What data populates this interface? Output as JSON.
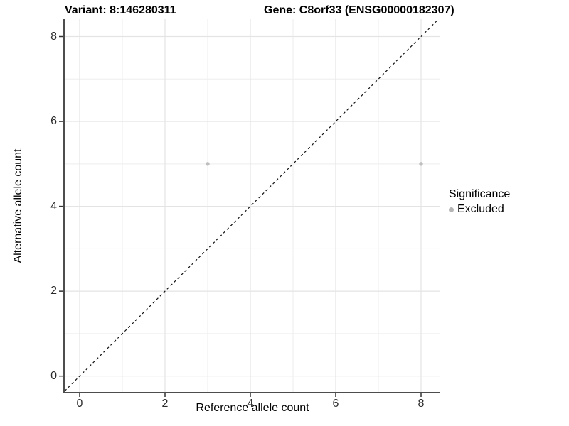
{
  "chart_data": {
    "type": "scatter",
    "title_left": "Variant: 8:146280311",
    "title_right": "Gene: C8orf33 (ENSG00000182307)",
    "xlabel": "Reference allele count",
    "ylabel": "Alternative allele count",
    "xlim": [
      -0.35,
      8.45
    ],
    "ylim": [
      -0.39,
      8.41
    ],
    "x_ticks": [
      0,
      2,
      4,
      6,
      8
    ],
    "y_ticks": [
      0,
      2,
      4,
      6,
      8
    ],
    "x_minor_ticks": [
      1,
      3,
      5,
      7
    ],
    "y_minor_ticks": [
      1,
      3,
      5,
      7
    ],
    "grid": true,
    "legend": {
      "title": "Significance",
      "position": "right",
      "items": [
        {
          "label": "Excluded",
          "color": "#bebebe"
        }
      ]
    },
    "series": [
      {
        "name": "Excluded",
        "color": "#bebebe",
        "points": [
          [
            3,
            5
          ],
          [
            8,
            5
          ]
        ]
      }
    ],
    "reference_line": {
      "type": "identity",
      "style": "dashed",
      "color": "#111111"
    }
  },
  "colors": {
    "background": "#ffffff",
    "grid_major": "#e4e4e4",
    "grid_minor": "#eeeeee",
    "axis_line": "#4d4d4d",
    "tick_mark": "#333333",
    "point": "#bebebe"
  }
}
